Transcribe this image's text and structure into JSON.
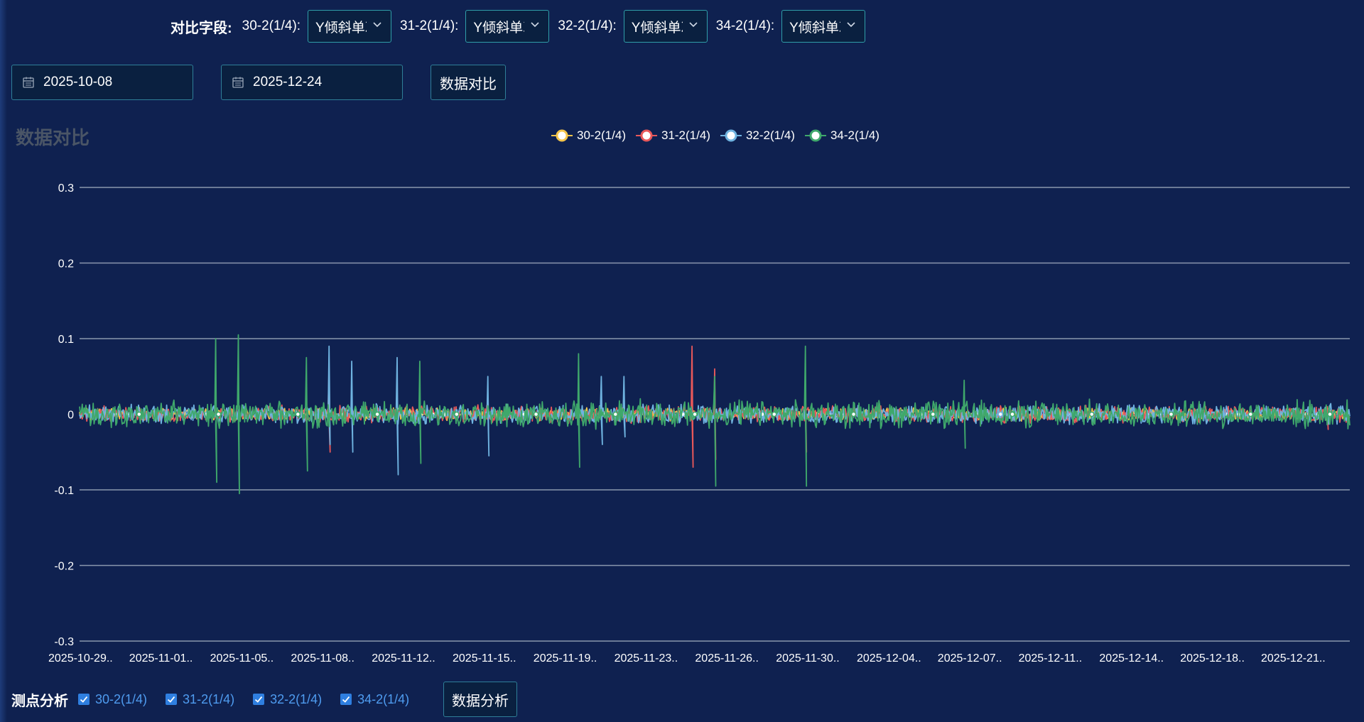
{
  "field_row": {
    "title": "对比字段:",
    "fields": [
      {
        "label": "30-2(1/4):",
        "value": "Y倾斜单次"
      },
      {
        "label": "31-2(1/4):",
        "value": "Y倾斜单次"
      },
      {
        "label": "32-2(1/4):",
        "value": "Y倾斜单次"
      },
      {
        "label": "34-2(1/4):",
        "value": "Y倾斜单次"
      }
    ]
  },
  "date_range": {
    "start": "2025-10-08",
    "end": "2025-12-24"
  },
  "compare_button": "数据对比",
  "chart_title": "数据对比",
  "colors": {
    "background": "#0f2150",
    "accent": "#2f9ea8",
    "series_30": "#f5c54a",
    "series_31": "#e8585a",
    "series_32": "#6fb3e0",
    "series_34": "#3fa86b"
  },
  "chart_data": {
    "type": "line",
    "title": "数据对比",
    "xlabel": "",
    "ylabel": "",
    "ylim": [
      -0.3,
      0.3
    ],
    "y_ticks": [
      "0.3",
      "0.2",
      "0.1",
      "0",
      "-0.1",
      "-0.2",
      "-0.3"
    ],
    "x_range": [
      "2025-10-29",
      "2025-12-24"
    ],
    "x_tick_labels": [
      "2025-10-29..",
      "2025-11-01..",
      "2025-11-05..",
      "2025-11-08..",
      "2025-11-12..",
      "2025-11-15..",
      "2025-11-19..",
      "2025-11-23..",
      "2025-11-26..",
      "2025-11-30..",
      "2025-12-04..",
      "2025-12-07..",
      "2025-12-11..",
      "2025-12-14..",
      "2025-12-18..",
      "2025-12-21.."
    ],
    "grid": true,
    "legend_position": "top-center",
    "series": [
      {
        "name": "30-2(1/4)",
        "color": "#f5c54a",
        "noise_amplitude": 0.006,
        "spikes": []
      },
      {
        "name": "31-2(1/4)",
        "color": "#e8585a",
        "noise_amplitude": 0.008,
        "spikes": [
          {
            "x": "2025-11-09",
            "high": 0.06,
            "low": -0.05
          },
          {
            "x": "2025-11-25",
            "high": 0.09,
            "low": -0.07
          },
          {
            "x": "2025-11-26",
            "high": 0.06,
            "low": -0.06
          },
          {
            "x": "2025-11-30",
            "high": 0.04,
            "low": -0.05
          },
          {
            "x": "2025-12-23",
            "high": 0.01,
            "low": -0.02
          }
        ]
      },
      {
        "name": "32-2(1/4)",
        "color": "#6fb3e0",
        "noise_amplitude": 0.009,
        "spikes": [
          {
            "x": "2025-11-09",
            "high": 0.09,
            "low": -0.04
          },
          {
            "x": "2025-11-10",
            "high": 0.07,
            "low": -0.05
          },
          {
            "x": "2025-11-12",
            "high": 0.075,
            "low": -0.08
          },
          {
            "x": "2025-11-16",
            "high": 0.05,
            "low": -0.055
          },
          {
            "x": "2025-11-21",
            "high": 0.05,
            "low": -0.04
          },
          {
            "x": "2025-11-22",
            "high": 0.05,
            "low": -0.03
          }
        ]
      },
      {
        "name": "34-2(1/4)",
        "color": "#3fa86b",
        "noise_amplitude": 0.013,
        "spikes": [
          {
            "x": "2025-11-04",
            "high": 0.1,
            "low": -0.09
          },
          {
            "x": "2025-11-05",
            "high": 0.105,
            "low": -0.105
          },
          {
            "x": "2025-11-08",
            "high": 0.075,
            "low": -0.075
          },
          {
            "x": "2025-11-13",
            "high": 0.07,
            "low": -0.065
          },
          {
            "x": "2025-11-20",
            "high": 0.08,
            "low": -0.07
          },
          {
            "x": "2025-11-26",
            "high": 0.05,
            "low": -0.095
          },
          {
            "x": "2025-11-30",
            "high": 0.09,
            "low": -0.095
          },
          {
            "x": "2025-12-07",
            "high": 0.045,
            "low": -0.045
          }
        ]
      }
    ]
  },
  "bottom_bar": {
    "title": "测点分析",
    "checks": [
      {
        "label": "30-2(1/4)",
        "checked": true
      },
      {
        "label": "31-2(1/4)",
        "checked": true
      },
      {
        "label": "32-2(1/4)",
        "checked": true
      },
      {
        "label": "34-2(1/4)",
        "checked": true
      }
    ],
    "analyze_button": "数据分析"
  }
}
